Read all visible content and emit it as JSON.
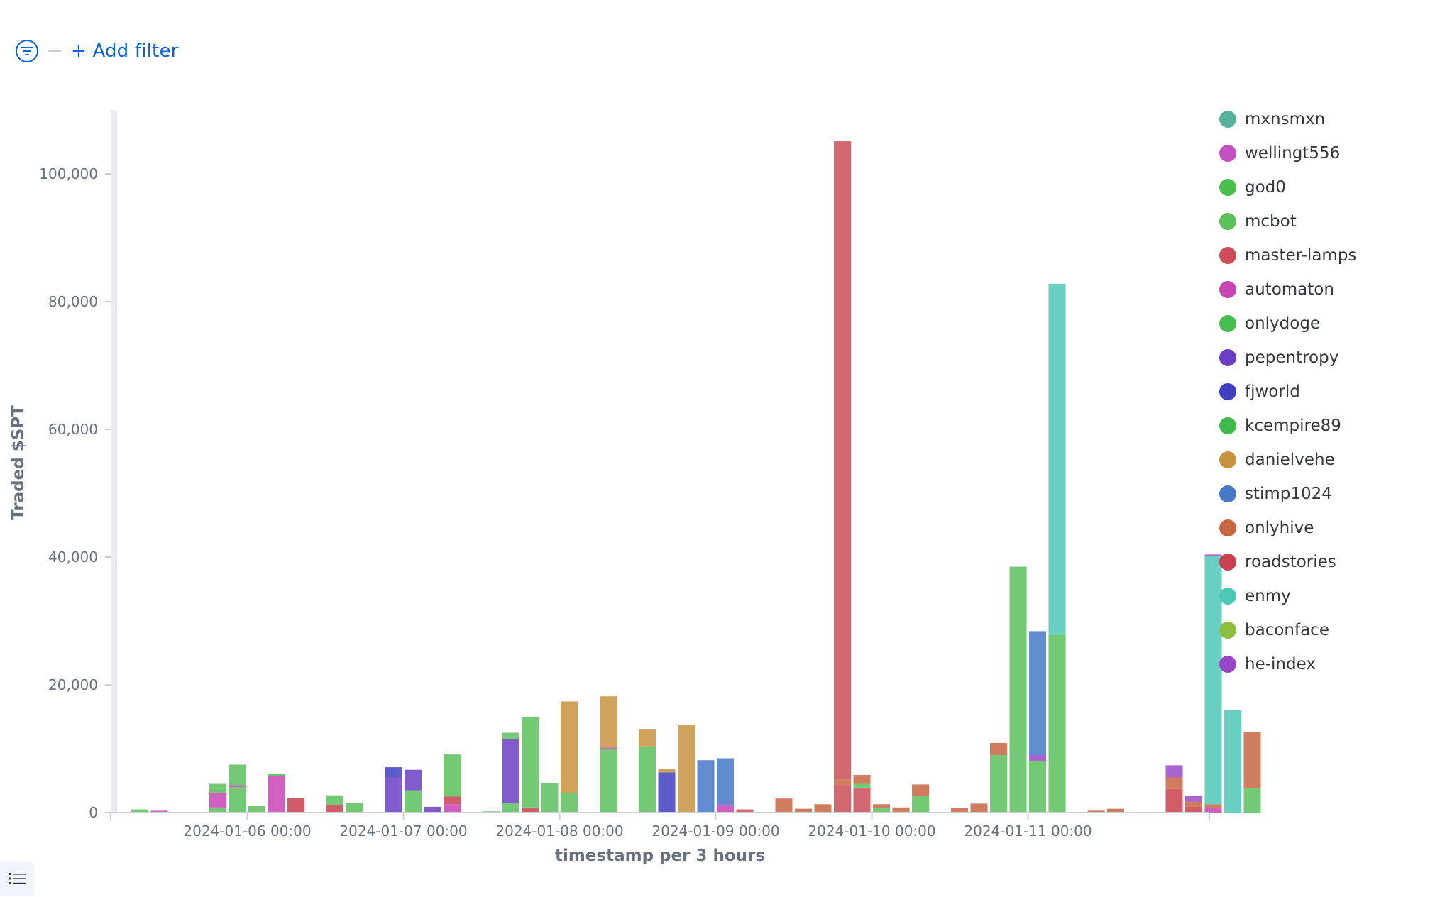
{
  "filter_bar": {
    "add_filter_label": "+ Add filter",
    "filter_icon": "filter-icon"
  },
  "toolbar": {
    "list_icon": "list-icon"
  },
  "chart_data": {
    "type": "bar",
    "stacked": true,
    "xlabel": "timestamp per 3 hours",
    "ylabel": "Traded $SPT",
    "ylim": [
      0,
      110000
    ],
    "yticks": [
      0,
      20000,
      40000,
      60000,
      80000,
      100000
    ],
    "ytick_labels": [
      "0",
      "20,000",
      "40,000",
      "60,000",
      "80,000",
      "100,000"
    ],
    "x_tick_labels": [
      "2024-01-06 00:00",
      "2024-01-07 00:00",
      "2024-01-08 00:00",
      "2024-01-09 00:00",
      "2024-01-10 00:00",
      "2024-01-11 00:00"
    ],
    "legend_position": "right",
    "grid": false,
    "series": [
      {
        "name": "mxnsmxn",
        "color": "#54b399"
      },
      {
        "name": "wellingt556",
        "color": "#c34fc0"
      },
      {
        "name": "god0",
        "color": "#4bbf4b"
      },
      {
        "name": "mcbot",
        "color": "#5cc05c"
      },
      {
        "name": "master-lamps",
        "color": "#ca4d57"
      },
      {
        "name": "automaton",
        "color": "#c843b4"
      },
      {
        "name": "onlydoge",
        "color": "#45bd51"
      },
      {
        "name": "pepentropy",
        "color": "#6a3fc5"
      },
      {
        "name": "fjworld",
        "color": "#3f3fbf"
      },
      {
        "name": "kcempire89",
        "color": "#40b94d"
      },
      {
        "name": "danielvehe",
        "color": "#c7933f"
      },
      {
        "name": "stimp1024",
        "color": "#4778c8"
      },
      {
        "name": "onlyhive",
        "color": "#c76642"
      },
      {
        "name": "roadstories",
        "color": "#c9414f"
      },
      {
        "name": "enmy",
        "color": "#4fc7b6"
      },
      {
        "name": "baconface",
        "color": "#8bbf3f"
      },
      {
        "name": "he-index",
        "color": "#9a47c9"
      }
    ],
    "bars": [
      {
        "time": "2024-01-05 06:00",
        "stack": [
          {
            "s": "mcbot",
            "v": 500
          }
        ]
      },
      {
        "time": "2024-01-05 09:00",
        "stack": [
          {
            "s": "wellingt556",
            "v": 300
          }
        ]
      },
      {
        "time": "2024-01-05 18:00",
        "stack": [
          {
            "s": "mcbot",
            "v": 800
          },
          {
            "s": "automaton",
            "v": 2200
          },
          {
            "s": "mcbot",
            "v": 1500
          }
        ]
      },
      {
        "time": "2024-01-05 21:00",
        "stack": [
          {
            "s": "mcbot",
            "v": 4000
          },
          {
            "s": "automaton",
            "v": 300
          },
          {
            "s": "mcbot",
            "v": 1700
          },
          {
            "s": "mcbot",
            "v": 1500
          }
        ]
      },
      {
        "time": "2024-01-06 00:00",
        "stack": [
          {
            "s": "mcbot",
            "v": 1000
          }
        ]
      },
      {
        "time": "2024-01-06 03:00",
        "stack": [
          {
            "s": "automaton",
            "v": 5700
          },
          {
            "s": "onlydoge",
            "v": 300
          }
        ]
      },
      {
        "time": "2024-01-06 06:00",
        "stack": [
          {
            "s": "roadstories",
            "v": 2300
          }
        ]
      },
      {
        "time": "2024-01-06 12:00",
        "stack": [
          {
            "s": "roadstories",
            "v": 1200
          },
          {
            "s": "mcbot",
            "v": 1500
          }
        ]
      },
      {
        "time": "2024-01-06 15:00",
        "stack": [
          {
            "s": "mcbot",
            "v": 1500
          }
        ]
      },
      {
        "time": "2024-01-06 21:00",
        "stack": [
          {
            "s": "pepentropy",
            "v": 5500
          },
          {
            "s": "fjworld",
            "v": 1600
          }
        ]
      },
      {
        "time": "2024-01-07 00:00",
        "stack": [
          {
            "s": "mcbot",
            "v": 3500
          },
          {
            "s": "pepentropy",
            "v": 3200
          }
        ]
      },
      {
        "time": "2024-01-07 03:00",
        "stack": [
          {
            "s": "pepentropy",
            "v": 900
          }
        ]
      },
      {
        "time": "2024-01-07 06:00",
        "stack": [
          {
            "s": "automaton",
            "v": 1300
          },
          {
            "s": "roadstories",
            "v": 1200
          },
          {
            "s": "mcbot",
            "v": 6600
          }
        ]
      },
      {
        "time": "2024-01-07 12:00",
        "stack": [
          {
            "s": "mcbot",
            "v": 200
          }
        ]
      },
      {
        "time": "2024-01-07 15:00",
        "stack": [
          {
            "s": "mcbot",
            "v": 1500
          },
          {
            "s": "pepentropy",
            "v": 10000
          },
          {
            "s": "mcbot",
            "v": 1000
          }
        ]
      },
      {
        "time": "2024-01-07 18:00",
        "stack": [
          {
            "s": "roadstories",
            "v": 800
          },
          {
            "s": "mcbot",
            "v": 14200
          }
        ]
      },
      {
        "time": "2024-01-07 21:00",
        "stack": [
          {
            "s": "mcbot",
            "v": 4600
          }
        ]
      },
      {
        "time": "2024-01-08 00:00",
        "stack": [
          {
            "s": "mcbot",
            "v": 3000
          },
          {
            "s": "danielvehe",
            "v": 14400
          }
        ]
      },
      {
        "time": "2024-01-08 06:00",
        "stack": [
          {
            "s": "mcbot",
            "v": 10000
          },
          {
            "s": "wellingt556",
            "v": 200
          },
          {
            "s": "danielvehe",
            "v": 8000
          }
        ]
      },
      {
        "time": "2024-01-08 12:00",
        "stack": [
          {
            "s": "mcbot",
            "v": 10400
          },
          {
            "s": "danielvehe",
            "v": 2700
          }
        ]
      },
      {
        "time": "2024-01-08 15:00",
        "stack": [
          {
            "s": "fjworld",
            "v": 6300
          },
          {
            "s": "danielvehe",
            "v": 500
          }
        ]
      },
      {
        "time": "2024-01-08 18:00",
        "stack": [
          {
            "s": "danielvehe",
            "v": 13700
          }
        ]
      },
      {
        "time": "2024-01-08 21:00",
        "stack": [
          {
            "s": "stimp1024",
            "v": 8200
          }
        ]
      },
      {
        "time": "2024-01-09 00:00",
        "stack": [
          {
            "s": "automaton",
            "v": 1100
          },
          {
            "s": "stimp1024",
            "v": 7400
          }
        ]
      },
      {
        "time": "2024-01-09 03:00",
        "stack": [
          {
            "s": "master-lamps",
            "v": 500
          }
        ]
      },
      {
        "time": "2024-01-09 09:00",
        "stack": [
          {
            "s": "onlyhive",
            "v": 2200
          }
        ]
      },
      {
        "time": "2024-01-09 12:00",
        "stack": [
          {
            "s": "onlyhive",
            "v": 600
          }
        ]
      },
      {
        "time": "2024-01-09 15:00",
        "stack": [
          {
            "s": "onlyhive",
            "v": 1300
          }
        ]
      },
      {
        "time": "2024-01-09 18:00",
        "stack": [
          {
            "s": "master-lamps",
            "v": 4300
          },
          {
            "s": "onlyhive",
            "v": 900
          },
          {
            "s": "master-lamps",
            "v": 99900
          }
        ]
      },
      {
        "time": "2024-01-09 21:00",
        "stack": [
          {
            "s": "master-lamps",
            "v": 3900
          },
          {
            "s": "mcbot",
            "v": 600
          },
          {
            "s": "onlyhive",
            "v": 1400
          }
        ]
      },
      {
        "time": "2024-01-10 00:00",
        "stack": [
          {
            "s": "mcbot",
            "v": 700
          },
          {
            "s": "onlyhive",
            "v": 600
          }
        ]
      },
      {
        "time": "2024-01-10 03:00",
        "stack": [
          {
            "s": "onlyhive",
            "v": 800
          }
        ]
      },
      {
        "time": "2024-01-10 06:00",
        "stack": [
          {
            "s": "mcbot",
            "v": 2600
          },
          {
            "s": "onlyhive",
            "v": 1800
          }
        ]
      },
      {
        "time": "2024-01-10 12:00",
        "stack": [
          {
            "s": "onlyhive",
            "v": 700
          }
        ]
      },
      {
        "time": "2024-01-10 15:00",
        "stack": [
          {
            "s": "onlyhive",
            "v": 1400
          }
        ]
      },
      {
        "time": "2024-01-10 18:00",
        "stack": [
          {
            "s": "mcbot",
            "v": 9000
          },
          {
            "s": "onlyhive",
            "v": 1900
          }
        ]
      },
      {
        "time": "2024-01-10 21:00",
        "stack": [
          {
            "s": "mcbot",
            "v": 38500
          }
        ]
      },
      {
        "time": "2024-01-11 00:00",
        "stack": [
          {
            "s": "mcbot",
            "v": 8000
          },
          {
            "s": "he-index",
            "v": 1000
          },
          {
            "s": "stimp1024",
            "v": 19400
          }
        ]
      },
      {
        "time": "2024-01-11 03:00",
        "stack": [
          {
            "s": "mcbot",
            "v": 27800
          },
          {
            "s": "enmy",
            "v": 55000
          }
        ]
      },
      {
        "time": "2024-01-11 09:00",
        "stack": [
          {
            "s": "onlyhive",
            "v": 300
          }
        ]
      },
      {
        "time": "2024-01-11 12:00",
        "stack": [
          {
            "s": "onlyhive",
            "v": 600
          }
        ]
      },
      {
        "time": "2024-01-11 21:00",
        "stack": [
          {
            "s": "roadstories",
            "v": 3700
          },
          {
            "s": "onlyhive",
            "v": 1800
          },
          {
            "s": "he-index",
            "v": 1900
          }
        ]
      },
      {
        "time": "2024-01-12 00:00",
        "stack": [
          {
            "s": "roadstories",
            "v": 900
          },
          {
            "s": "onlyhive",
            "v": 800
          },
          {
            "s": "he-index",
            "v": 900
          }
        ]
      },
      {
        "time": "2024-01-12 03:00",
        "stack": [
          {
            "s": "automaton",
            "v": 700
          },
          {
            "s": "onlyhive",
            "v": 600
          },
          {
            "s": "enmy",
            "v": 38800
          },
          {
            "s": "he-index",
            "v": 300
          }
        ]
      },
      {
        "time": "2024-01-12 06:00",
        "stack": [
          {
            "s": "enmy",
            "v": 16100
          }
        ]
      },
      {
        "time": "2024-01-12 09:00",
        "stack": [
          {
            "s": "mcbot",
            "v": 3800
          },
          {
            "s": "onlyhive",
            "v": 8800
          }
        ]
      }
    ]
  }
}
